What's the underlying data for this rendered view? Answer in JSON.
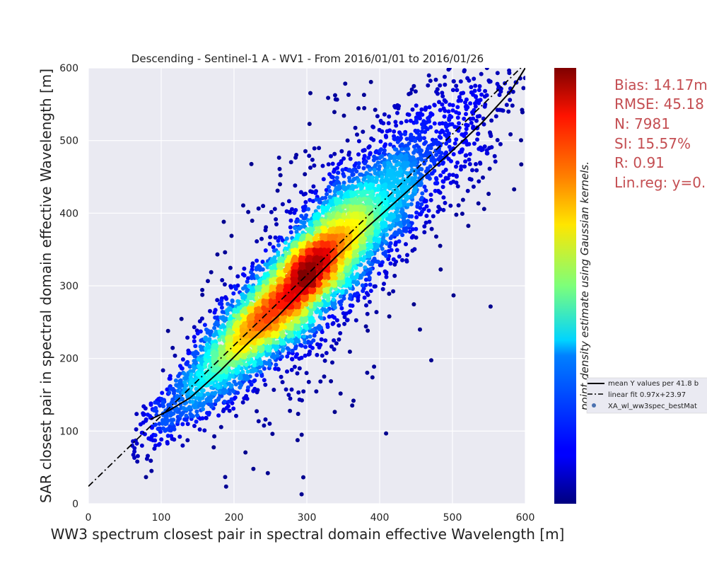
{
  "chart_data": {
    "type": "scatter",
    "title": "Descending - Sentinel-1 A - WV1 - From 2016/01/01 to 2016/01/26",
    "xlabel": "WW3 spectrum closest pair in spectral domain effective Wavelength [m]",
    "ylabel": "SAR closest pair in spectral domain effective Wavelength [m]",
    "xlim": [
      0,
      600
    ],
    "ylim": [
      0,
      600
    ],
    "xticks": [
      0,
      100,
      200,
      300,
      400,
      500,
      600
    ],
    "yticks": [
      0,
      100,
      200,
      300,
      400,
      500,
      600
    ],
    "grid": true,
    "colorbar_label": "point density estimate using Gaussian kernels.",
    "colormap": "jet",
    "stats": [
      "Bias: 14.17m",
      "RMSE: 45.18",
      "N: 7981",
      "SI: 15.57%",
      "R: 0.91",
      "Lin.reg: y=0."
    ],
    "legend": {
      "position": "right",
      "entries": [
        {
          "label": "mean Y values per 41.8 b",
          "style": "solid"
        },
        {
          "label": "linear fit 0.97x+23.97",
          "style": "dashdot"
        },
        {
          "label": "XA_wl_ww3spec_bestMat",
          "style": "marker"
        }
      ]
    },
    "linear_fit": {
      "slope": 0.97,
      "intercept": 23.97,
      "x_range": [
        0,
        600
      ]
    },
    "mean_curve": {
      "x": [
        85,
        110,
        140,
        180,
        220,
        260,
        300,
        340,
        380,
        420,
        460,
        500,
        540,
        580,
        600
      ],
      "y": [
        116,
        128,
        146,
        182,
        222,
        258,
        300,
        340,
        378,
        414,
        450,
        486,
        524,
        568,
        600
      ]
    },
    "density_cloud": {
      "n_points": 7981,
      "slope": 0.97,
      "intercept": 23.97,
      "x_center": 275,
      "x_spread": 80,
      "x_min": 60,
      "x_max": 600,
      "y_noise": 32
    }
  }
}
